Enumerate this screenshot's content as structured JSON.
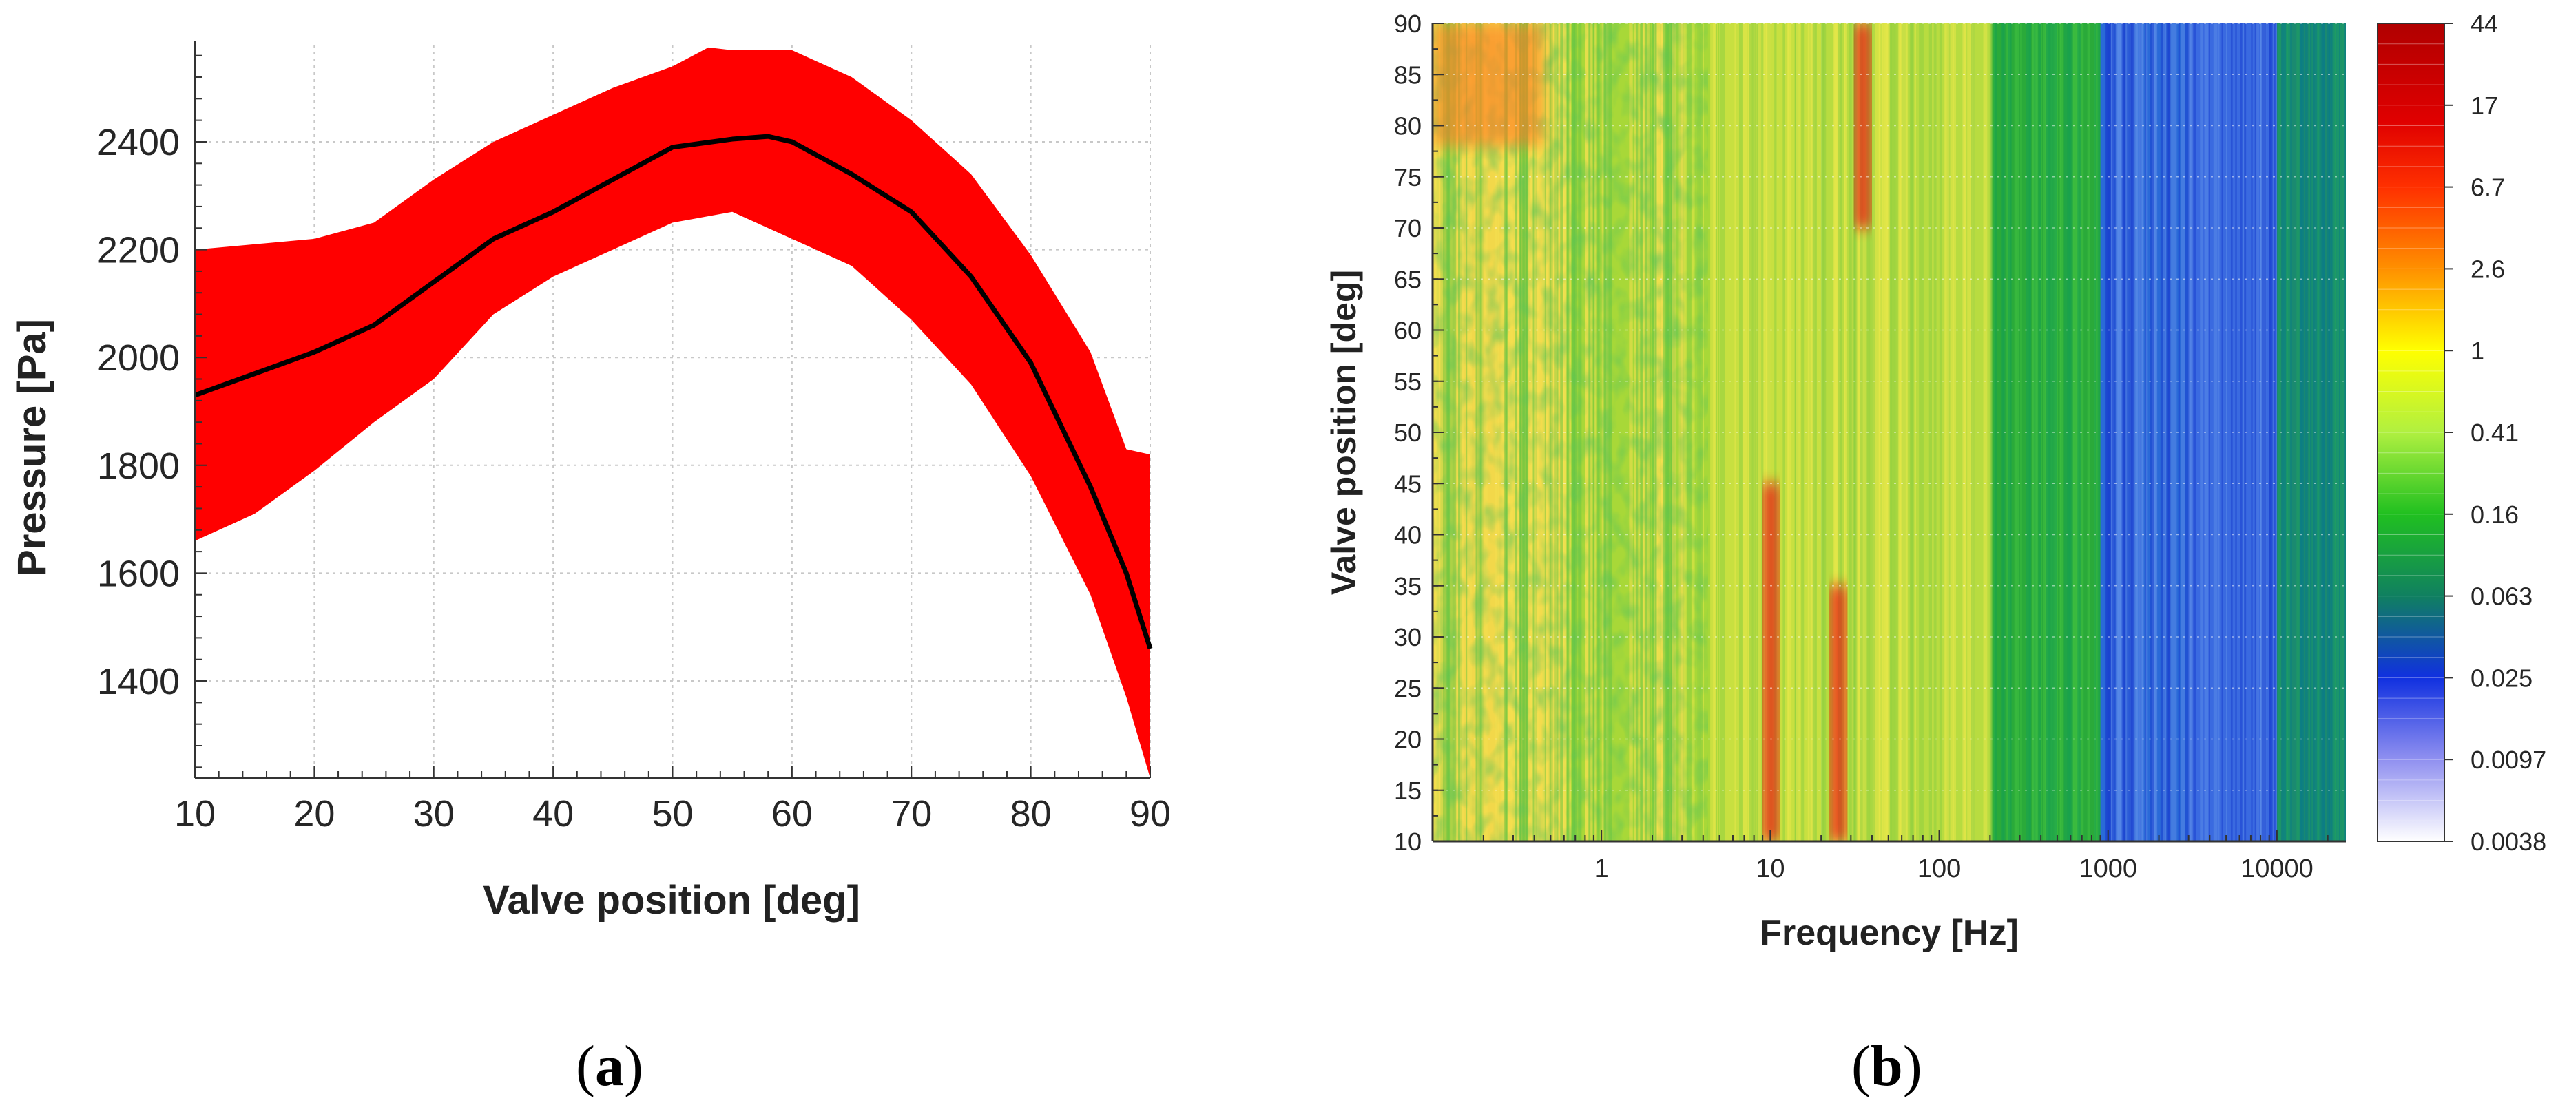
{
  "chart_data": [
    {
      "type": "area",
      "panel": "a",
      "xlabel": "Valve position [deg]",
      "ylabel": "Pressure [Pa]",
      "xlim": [
        10,
        90
      ],
      "ylim": [
        1220,
        2580
      ],
      "xticks": [
        10,
        20,
        30,
        40,
        50,
        60,
        70,
        80,
        90
      ],
      "yticks": [
        1400,
        1600,
        1800,
        2000,
        2200,
        2400
      ],
      "grid": true,
      "band_color": "#ff0000",
      "line_color": "#000000",
      "series": [
        {
          "name": "mean",
          "x": [
            10,
            15,
            20,
            25,
            30,
            35,
            40,
            45,
            50,
            55,
            58,
            60,
            65,
            70,
            75,
            80,
            85,
            88,
            90
          ],
          "values": [
            1930,
            1970,
            2010,
            2060,
            2140,
            2220,
            2270,
            2330,
            2390,
            2405,
            2410,
            2400,
            2340,
            2270,
            2150,
            1990,
            1760,
            1600,
            1460
          ]
        },
        {
          "name": "upper",
          "x": [
            10,
            15,
            20,
            25,
            30,
            35,
            40,
            45,
            50,
            53,
            55,
            60,
            65,
            70,
            75,
            80,
            85,
            88,
            90
          ],
          "values": [
            2200,
            2210,
            2220,
            2250,
            2330,
            2400,
            2450,
            2500,
            2540,
            2575,
            2570,
            2570,
            2520,
            2440,
            2340,
            2190,
            2010,
            1830,
            1820
          ]
        },
        {
          "name": "lower",
          "x": [
            10,
            15,
            20,
            25,
            30,
            35,
            40,
            45,
            50,
            55,
            60,
            65,
            70,
            75,
            80,
            85,
            88,
            90
          ],
          "values": [
            1660,
            1710,
            1790,
            1880,
            1960,
            2080,
            2150,
            2200,
            2250,
            2270,
            2220,
            2170,
            2070,
            1950,
            1780,
            1560,
            1370,
            1220
          ]
        }
      ]
    },
    {
      "type": "heatmap",
      "panel": "b",
      "xlabel": "Frequency [Hz]",
      "ylabel": "Valve position [deg]",
      "xscale": "log",
      "xlim": [
        0.1,
        25600
      ],
      "ylim": [
        10,
        90
      ],
      "xticks": [
        1,
        10,
        100,
        1000,
        10000
      ],
      "xtick_labels": [
        "1",
        "10",
        "100",
        "1000",
        "10000"
      ],
      "yticks": [
        10,
        15,
        20,
        25,
        30,
        35,
        40,
        45,
        50,
        55,
        60,
        65,
        70,
        75,
        80,
        85,
        90
      ],
      "colorbar": {
        "scale": "log",
        "range": [
          0.0038,
          44
        ],
        "tick_labels": [
          "44",
          "17",
          "6.7",
          "2.6",
          "1",
          "0.41",
          "0.16",
          "0.063",
          "0.025",
          "0.0097",
          "0.0038"
        ]
      },
      "features": [
        {
          "description": "low-frequency broadband",
          "freq_range": [
            0.1,
            200
          ],
          "level": "medium"
        },
        {
          "description": "peak band",
          "freq": 10,
          "valve_range": [
            10,
            45
          ],
          "level": "high"
        },
        {
          "description": "peak band",
          "freq": 25,
          "valve_range": [
            10,
            35
          ],
          "level": "high"
        },
        {
          "description": "peak band",
          "freq": 35,
          "valve_range": [
            70,
            90
          ],
          "level": "high"
        },
        {
          "description": "high-frequency region",
          "freq_range": [
            200,
            25600
          ],
          "level": "low"
        }
      ]
    }
  ],
  "captions": {
    "a": "a",
    "b": "b"
  }
}
